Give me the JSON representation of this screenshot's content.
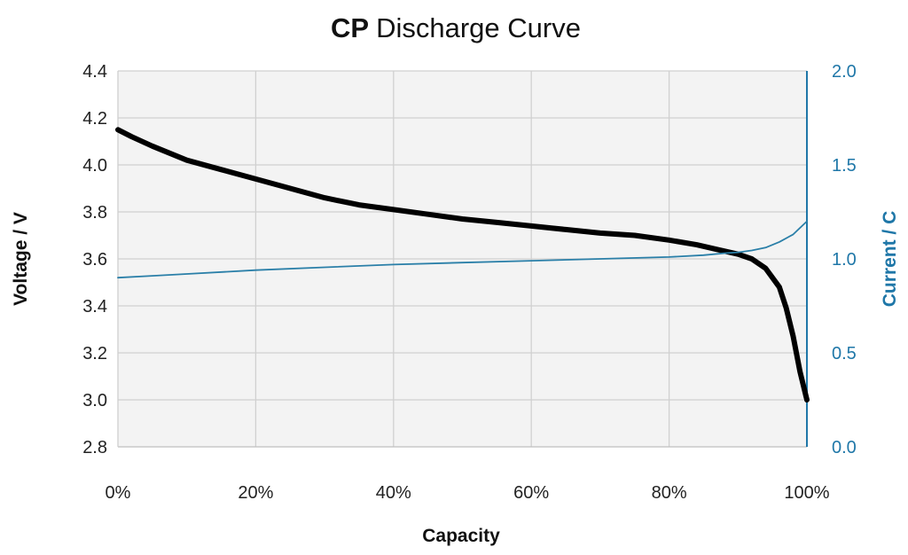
{
  "chart_data": {
    "type": "line",
    "title_bold": "CP",
    "title_rest": "Discharge Curve",
    "xlabel": "Capacity",
    "ylabel_left": "Voltage / V",
    "ylabel_right": "Current / C",
    "x_ticks": [
      "0%",
      "20%",
      "40%",
      "60%",
      "80%",
      "100%"
    ],
    "x_tick_values": [
      0,
      20,
      40,
      60,
      80,
      100
    ],
    "y_left_ticks": [
      "4.4",
      "4.2",
      "4.0",
      "3.8",
      "3.6",
      "3.4",
      "3.2",
      "3.0",
      "2.8"
    ],
    "y_left_tick_values": [
      4.4,
      4.2,
      4.0,
      3.8,
      3.6,
      3.4,
      3.2,
      3.0,
      2.8
    ],
    "y_right_ticks": [
      "2.0",
      "1.5",
      "1.0",
      "0.5",
      "0.0"
    ],
    "y_right_tick_values": [
      2.0,
      1.5,
      1.0,
      0.5,
      0.0
    ],
    "xlim": [
      0,
      100
    ],
    "ylim_left": [
      2.8,
      4.4
    ],
    "ylim_right": [
      0.0,
      2.0
    ],
    "grid": true,
    "colors": {
      "voltage": "#000000",
      "current": "#2a7fa8",
      "grid": "#d0d0d0",
      "plot_bg": "#f3f3f3",
      "right_axis": "#1f77a8"
    },
    "series": [
      {
        "axis": "left",
        "x": [
          0,
          2,
          5,
          10,
          15,
          20,
          25,
          30,
          35,
          40,
          45,
          50,
          55,
          60,
          65,
          70,
          75,
          80,
          84,
          87,
          90,
          92,
          94,
          96,
          97,
          98,
          99,
          100
        ],
        "y": [
          4.15,
          4.12,
          4.08,
          4.02,
          3.98,
          3.94,
          3.9,
          3.86,
          3.83,
          3.81,
          3.79,
          3.77,
          3.755,
          3.74,
          3.725,
          3.71,
          3.7,
          3.68,
          3.66,
          3.64,
          3.62,
          3.6,
          3.56,
          3.48,
          3.39,
          3.27,
          3.12,
          3.0
        ]
      },
      {
        "axis": "right",
        "x": [
          0,
          5,
          10,
          20,
          30,
          40,
          50,
          60,
          70,
          80,
          85,
          88,
          90,
          92,
          94,
          96,
          98,
          100
        ],
        "y": [
          0.9,
          0.91,
          0.92,
          0.94,
          0.955,
          0.97,
          0.98,
          0.99,
          1.0,
          1.01,
          1.02,
          1.03,
          1.035,
          1.045,
          1.06,
          1.09,
          1.13,
          1.2
        ]
      }
    ]
  }
}
